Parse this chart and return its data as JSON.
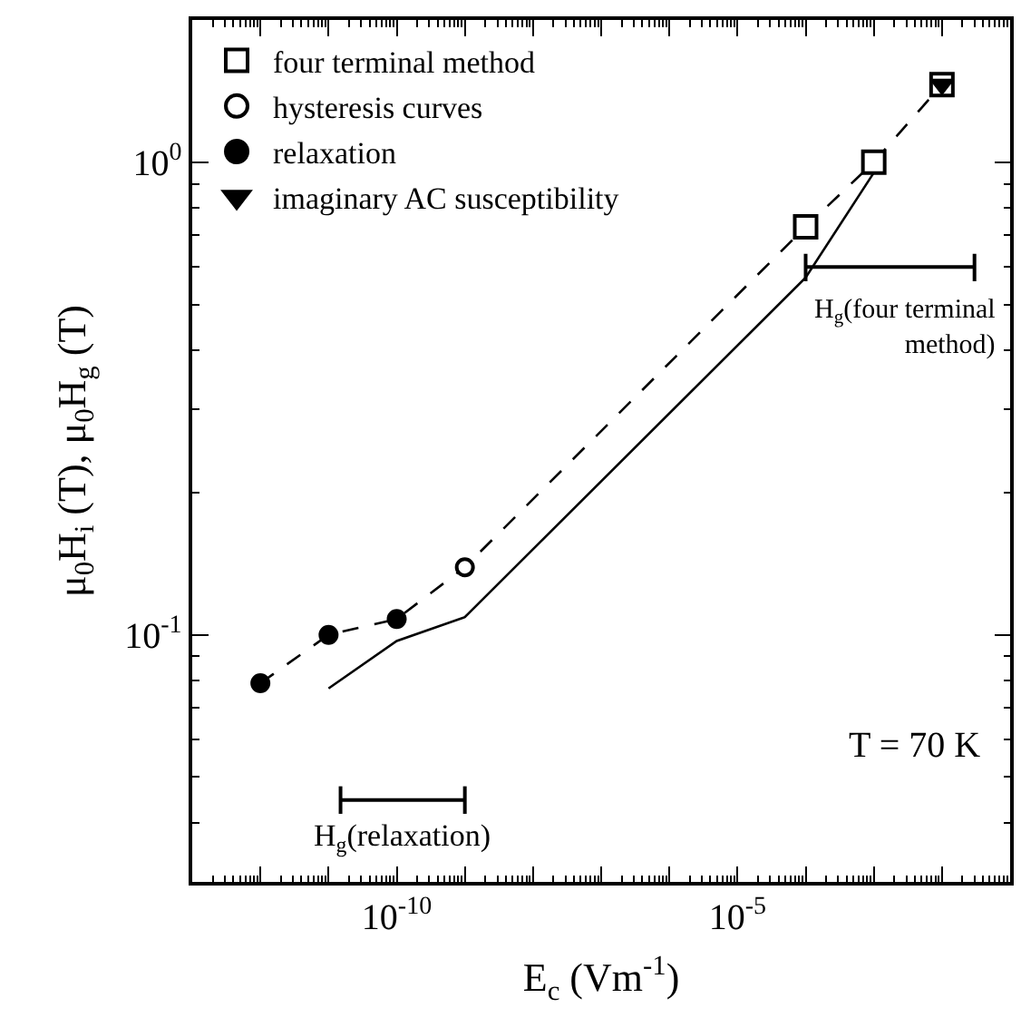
{
  "chart_data": {
    "type": "scatter",
    "xlabel": "E$_{c}$ (Vm$^{-1}$)",
    "ylabel": "μ$_{0}$H$_{i}$ (T), μ$_{0}$H$_{g}$ (T)",
    "log": "xy",
    "legend": "top left",
    "xlim": [
      1e-13,
      0.1
    ],
    "ylim": [
      0.03,
      2.0
    ],
    "xticks": [
      {
        "value": 1e-13,
        "label": null
      },
      {
        "value": 1e-12,
        "label": null
      },
      {
        "value": 1e-11,
        "label": null
      },
      {
        "value": 1e-10,
        "label": "10$^{-10}$"
      },
      {
        "value": 1e-09,
        "label": null
      },
      {
        "value": 1e-08,
        "label": null
      },
      {
        "value": 1e-07,
        "label": null
      },
      {
        "value": 1e-06,
        "label": null
      },
      {
        "value": 1e-05,
        "label": "10$^{-5}$"
      },
      {
        "value": 0.0001,
        "label": null
      },
      {
        "value": 0.001,
        "label": null
      },
      {
        "value": 0.01,
        "label": null
      },
      {
        "value": 0.1,
        "label": null
      }
    ],
    "yticks": [
      {
        "value": 0.1,
        "label": "10$^{-1}$"
      },
      {
        "value": 1,
        "label": "10$^{0}$"
      }
    ],
    "series": [
      {
        "type": "line",
        "line_style": "dashed",
        "marker": "none",
        "color": "#000000",
        "x": [
          1e-12,
          1e-11,
          1e-10,
          1e-09,
          0.0001,
          0.001,
          0.01
        ],
        "values": [
          0.079,
          0.1,
          0.108,
          0.139,
          0.73,
          1.0,
          1.46
        ]
      },
      {
        "type": "line",
        "line_style": "solid",
        "marker": "none",
        "color": "#000000",
        "x": [
          1e-11,
          1e-10,
          1e-09,
          0.0001,
          0.001
        ],
        "values": [
          0.077,
          0.097,
          0.109,
          0.57,
          0.95
        ]
      },
      {
        "type": "line",
        "line_style": "solid",
        "marker": "none",
        "color": "#000000",
        "x": [
          0.0001,
          0.03
        ],
        "values": [
          0.6,
          0.6
        ],
        "errors": [
          [
            0.56,
            0.64
          ],
          [
            0.56,
            0.64
          ]
        ]
      },
      {
        "type": "line",
        "line_style": "solid",
        "marker": "none",
        "color": "#000000",
        "x": [
          1.5e-11,
          1e-09
        ],
        "values": [
          0.0447,
          0.0447
        ],
        "errors": [
          [
            0.0418,
            0.0478
          ],
          [
            0.0418,
            0.0478
          ]
        ]
      },
      {
        "name": "four terminal method",
        "marker": "square",
        "color": "#ffffff",
        "x": [
          0.0001,
          0.001,
          0.01
        ],
        "values": [
          0.73,
          1.0,
          1.46
        ]
      },
      {
        "name": "hysteresis curves",
        "marker": "circle",
        "color": "#ffffff",
        "x": [
          1e-09
        ],
        "values": [
          0.139
        ]
      },
      {
        "name": "relaxation",
        "marker": "circle",
        "color": "#000000",
        "x": [
          1e-12,
          1e-11,
          1e-10
        ],
        "values": [
          0.079,
          0.1,
          0.108
        ]
      },
      {
        "name": "imaginary AC susceptibility",
        "marker": "triangle",
        "color": "#000000",
        "x": [
          0.01
        ],
        "values": [
          1.46
        ]
      }
    ],
    "annotations": [
      {
        "text": "H$_{g}$(four terminal\nmethod)",
        "x": 0.03,
        "y": 0.6
      },
      {
        "text": "H$_{g}$(relaxation)",
        "x": 1.2e-10,
        "y": 0.0447
      },
      "T = 70 K"
    ]
  }
}
